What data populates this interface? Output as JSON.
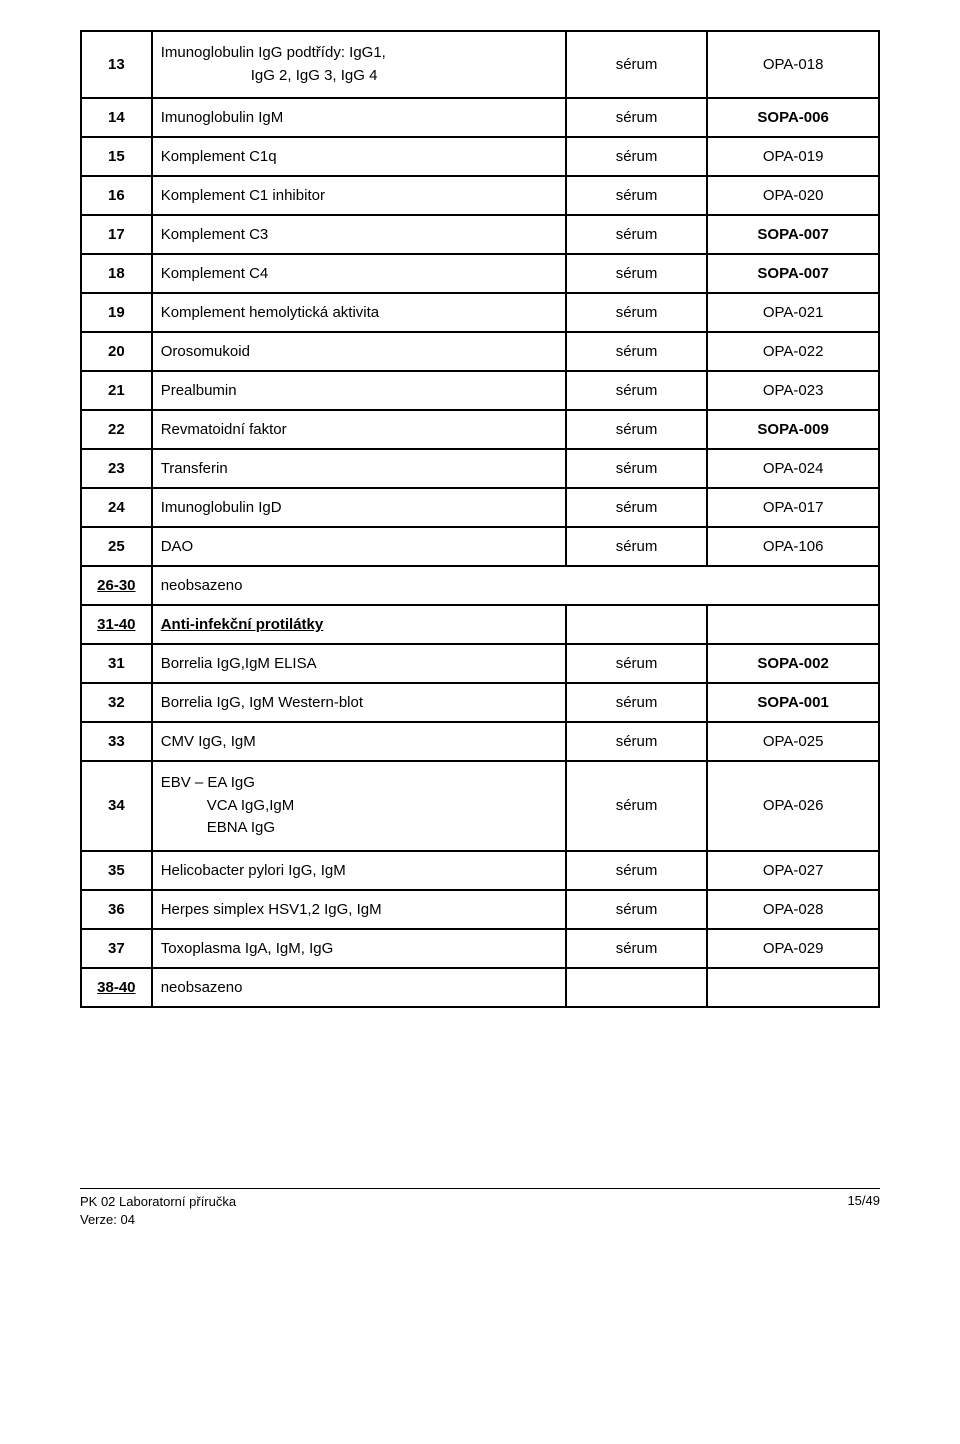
{
  "rows": [
    {
      "num": "13",
      "name": "Imunoglobulin IgG podtřídy: IgG1,\n        IgG 2, IgG 3, IgG 4",
      "sample": "sérum",
      "code": "OPA-018",
      "boldCode": false,
      "multiline": true
    },
    {
      "num": "14",
      "name": "Imunoglobulin IgM",
      "sample": "sérum",
      "code": "SOPA-006",
      "boldCode": true
    },
    {
      "num": "15",
      "name": "Komplement C1q",
      "sample": "sérum",
      "code": "OPA-019",
      "boldCode": false
    },
    {
      "num": "16",
      "name": "Komplement C1 inhibitor",
      "sample": "sérum",
      "code": "OPA-020",
      "boldCode": false
    },
    {
      "num": "17",
      "name": "Komplement C3",
      "sample": "sérum",
      "code": "SOPA-007",
      "boldCode": true
    },
    {
      "num": "18",
      "name": "Komplement C4",
      "sample": "sérum",
      "code": "SOPA-007",
      "boldCode": true
    },
    {
      "num": "19",
      "name": "Komplement hemolytická aktivita",
      "sample": "sérum",
      "code": "OPA-021",
      "boldCode": false
    },
    {
      "num": "20",
      "name": "Orosomukoid",
      "sample": "sérum",
      "code": "OPA-022",
      "boldCode": false
    },
    {
      "num": "21",
      "name": "Prealbumin",
      "sample": "sérum",
      "code": "OPA-023",
      "boldCode": false
    },
    {
      "num": "22",
      "name": "Revmatoidní faktor",
      "sample": "sérum",
      "code": "SOPA-009",
      "boldCode": true
    },
    {
      "num": "23",
      "name": "Transferin",
      "sample": "sérum",
      "code": "OPA-024",
      "boldCode": false
    },
    {
      "num": "24",
      "name": "Imunoglobulin IgD",
      "sample": "sérum",
      "code": "OPA-017",
      "boldCode": false
    },
    {
      "num": "25",
      "name": "DAO",
      "sample": "sérum",
      "code": "OPA-106",
      "boldCode": false
    },
    {
      "num": "26-30",
      "name": "neobsazeno",
      "section": true,
      "underlineNum": true
    },
    {
      "num": "31-40",
      "name": "Anti-infekční protilátky",
      "section": true,
      "underlineNum": true,
      "underlineName": true,
      "boldName": true,
      "emptyCells": true
    },
    {
      "num": "31",
      "name": "Borrelia IgG,IgM ELISA",
      "sample": "sérum",
      "code": "SOPA-002",
      "boldCode": true
    },
    {
      "num": "32",
      "name": "Borrelia IgG, IgM Western-blot",
      "sample": "sérum",
      "code": "SOPA-001",
      "boldCode": true
    },
    {
      "num": "33",
      "name": "CMV IgG, IgM",
      "sample": "sérum",
      "code": "OPA-025",
      "boldCode": false
    },
    {
      "num": "34",
      "name": "EBV – EA IgG\n         VCA IgG,IgM\n         EBNA IgG",
      "sample": "sérum",
      "code": "OPA-026",
      "boldCode": false,
      "multiline": true,
      "ebv": true
    },
    {
      "num": "35",
      "name": "Helicobacter pylori IgG, IgM",
      "sample": "sérum",
      "code": "OPA-027",
      "boldCode": false
    },
    {
      "num": "36",
      "name": "Herpes simplex HSV1,2 IgG, IgM",
      "sample": "sérum",
      "code": "OPA-028",
      "boldCode": false
    },
    {
      "num": "37",
      "name": "Toxoplasma IgA, IgM, IgG",
      "sample": "sérum",
      "code": "OPA-029",
      "boldCode": false
    },
    {
      "num": "38-40",
      "name": "neobsazeno",
      "section": true,
      "underlineNum": true,
      "emptyCells": true
    }
  ],
  "footer": {
    "line1": "PK 02 Laboratorní příručka",
    "line2": "Verze: 04",
    "page": "15/49"
  }
}
